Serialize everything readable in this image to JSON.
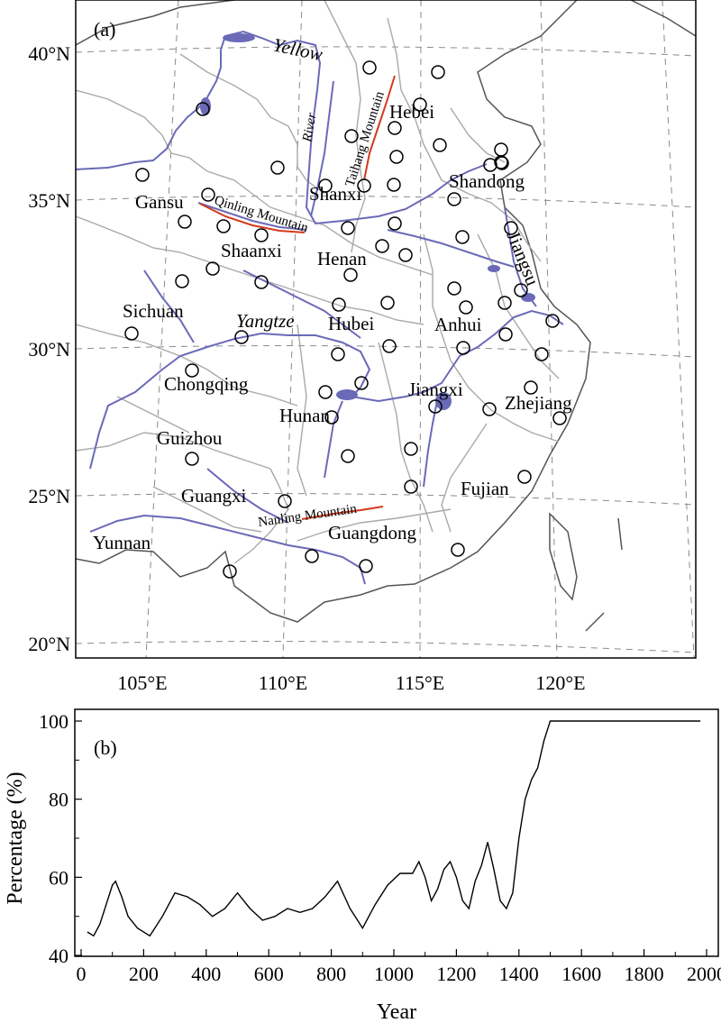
{
  "map": {
    "panel_label": "(a)",
    "lat_labels": [
      "40°N",
      "35°N",
      "30°N",
      "25°N",
      "20°N"
    ],
    "lon_labels": [
      "105°E",
      "110°E",
      "115°E",
      "120°E"
    ],
    "provinces": [
      "Hebei",
      "Shanxi",
      "Shandong",
      "Gansu",
      "Shaanxi",
      "Henan",
      "Jiangsu",
      "Sichuan",
      "Hubei",
      "Anhui",
      "Chongqing",
      "Jiangxi",
      "Zhejiang",
      "Hunan",
      "Guizhou",
      "Fujian",
      "Guangxi",
      "Yunnan",
      "Guangdong"
    ],
    "features": {
      "yellow_river_1": "Yellow",
      "yellow_river_2": "River",
      "yangtze": "Yangtze",
      "taihang": "Taihang Mountain",
      "qinling": "Qinling Mountain",
      "nanling": "Nanling Mountain"
    },
    "colors": {
      "river": "#6a6ab8",
      "mountain": "#d23a1a",
      "province_border": "#a9a9a9",
      "grid": "#8a8a8a"
    },
    "station_count": 64
  },
  "chart_data": {
    "type": "line",
    "panel_label": "(b)",
    "title": "",
    "xlabel": "Year",
    "ylabel": "Percentage (%)",
    "xlim": [
      0,
      2000
    ],
    "ylim": [
      40,
      100
    ],
    "xticks": [
      0,
      200,
      400,
      600,
      800,
      1000,
      1200,
      1400,
      1600,
      1800,
      2000
    ],
    "yticks": [
      40,
      60,
      80,
      100
    ],
    "grid": false,
    "series": [
      {
        "name": "",
        "x": [
          20,
          40,
          60,
          80,
          100,
          110,
          130,
          150,
          180,
          220,
          260,
          300,
          340,
          380,
          420,
          460,
          500,
          540,
          580,
          620,
          660,
          700,
          740,
          780,
          820,
          860,
          900,
          940,
          980,
          1020,
          1060,
          1080,
          1100,
          1120,
          1140,
          1160,
          1180,
          1200,
          1220,
          1240,
          1260,
          1280,
          1300,
          1320,
          1340,
          1360,
          1380,
          1400,
          1420,
          1440,
          1460,
          1480,
          1500,
          1550,
          1600,
          1700,
          1800,
          1900,
          1980
        ],
        "y": [
          46,
          45,
          48,
          53,
          58,
          59,
          55,
          50,
          47,
          45,
          50,
          56,
          55,
          53,
          50,
          52,
          56,
          52,
          49,
          50,
          52,
          51,
          52,
          55,
          59,
          52,
          47,
          53,
          58,
          61,
          61,
          64,
          60,
          54,
          57,
          62,
          64,
          60,
          54,
          52,
          59,
          63,
          69,
          62,
          54,
          52,
          56,
          70,
          80,
          85,
          88,
          95,
          100,
          100,
          100,
          100,
          100,
          100,
          100
        ]
      }
    ]
  }
}
